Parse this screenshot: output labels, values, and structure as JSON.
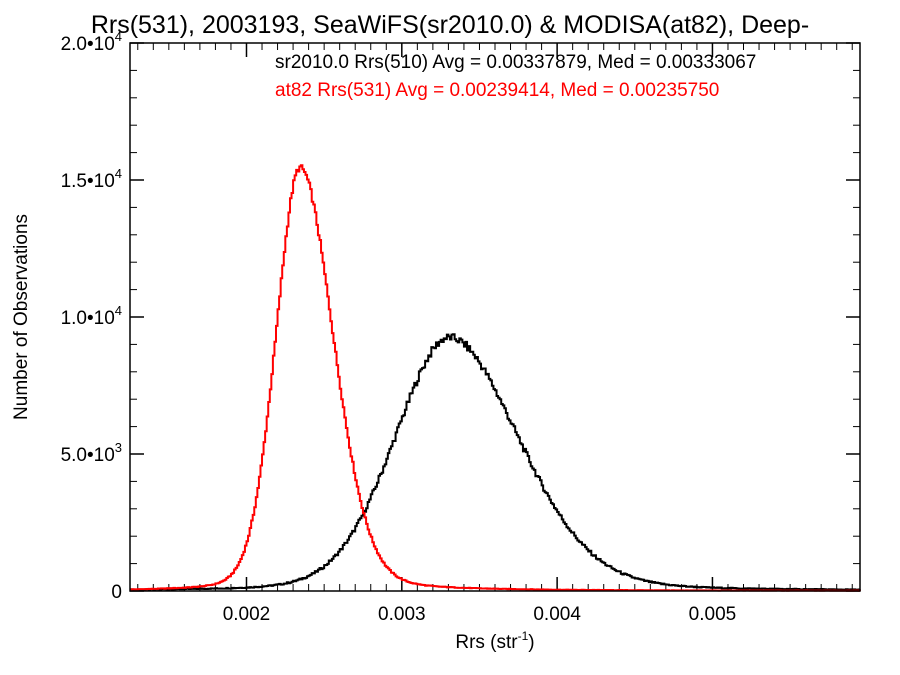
{
  "chart_data": {
    "type": "line",
    "title": "Rrs(531), 2003193, SeaWiFS(sr2010.0) & MODISA(at82), Deep-",
    "xlabel_main": "Rrs (str",
    "xlabel_sup": "-1",
    "xlabel_close": ")",
    "ylabel": "Number of Observations",
    "xlim": [
      0.00125,
      0.00595
    ],
    "ylim": [
      0,
      20000
    ],
    "x_ticks": [
      {
        "value": 0.002,
        "label": "0.002"
      },
      {
        "value": 0.003,
        "label": "0.003"
      },
      {
        "value": 0.004,
        "label": "0.004"
      },
      {
        "value": 0.005,
        "label": "0.005"
      }
    ],
    "y_ticks": [
      {
        "value": 0,
        "mant": "0",
        "exp": ""
      },
      {
        "value": 5000,
        "mant": "5.0•10",
        "exp": "3"
      },
      {
        "value": 10000,
        "mant": "1.0•10",
        "exp": "4"
      },
      {
        "value": 15000,
        "mant": "1.5•10",
        "exp": "4"
      },
      {
        "value": 20000,
        "mant": "2.0•10",
        "exp": "4"
      }
    ],
    "grid": false,
    "legend_position": "top-right",
    "series": [
      {
        "label": "sr2010.0 Rrs(510) Avg = 0.00337879, Med = 0.00333067",
        "color": "#000000",
        "mean": 0.0033,
        "peak": 9250,
        "sigma_left": 0.00036,
        "sigma_right": 0.00046,
        "noise": 150
      },
      {
        "label": "at82 Rrs(531) Avg = 0.00239414, Med = 0.00235750",
        "color": "#ff0000",
        "mean": 0.00234,
        "peak": 15450,
        "sigma_left": 0.00016,
        "sigma_right": 0.00022,
        "noise": 120
      }
    ]
  }
}
